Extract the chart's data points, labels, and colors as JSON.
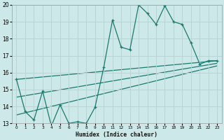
{
  "xlabel": "Humidex (Indice chaleur)",
  "bg_color": "#cce8e8",
  "grid_color": "#b8d4d4",
  "line_color": "#1a7a6e",
  "xlim": [
    -0.5,
    23.5
  ],
  "ylim": [
    13,
    20
  ],
  "xticks": [
    0,
    1,
    2,
    3,
    4,
    5,
    6,
    7,
    8,
    9,
    10,
    11,
    12,
    13,
    14,
    15,
    16,
    17,
    18,
    19,
    20,
    21,
    22,
    23
  ],
  "yticks": [
    13,
    14,
    15,
    16,
    17,
    18,
    19,
    20
  ],
  "series1_x": [
    0,
    1,
    2,
    3,
    4,
    5,
    6,
    7,
    8,
    9,
    10,
    11,
    12,
    13,
    14,
    15,
    16,
    17,
    18,
    19,
    20,
    21,
    22,
    23
  ],
  "series1_y": [
    15.6,
    13.7,
    13.2,
    14.9,
    12.85,
    14.1,
    13.0,
    13.1,
    13.0,
    13.95,
    16.3,
    19.1,
    17.5,
    17.35,
    20.0,
    19.5,
    18.85,
    19.95,
    19.0,
    18.85,
    17.75,
    16.5,
    16.7,
    16.7
  ],
  "trend1_x": [
    0,
    23
  ],
  "trend1_y": [
    15.6,
    16.7
  ],
  "trend2_x": [
    0,
    23
  ],
  "trend2_y": [
    14.55,
    16.55
  ],
  "trend3_x": [
    0,
    23
  ],
  "trend3_y": [
    13.5,
    16.4
  ]
}
